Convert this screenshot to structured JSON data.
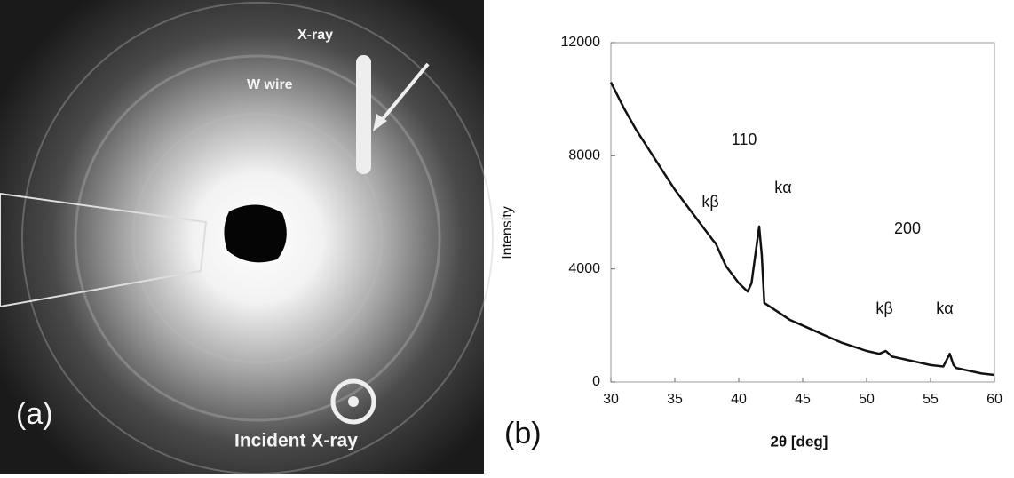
{
  "panel_a": {
    "label": "(a)",
    "texts": [
      "X-ray",
      "W wire",
      "Incident X-ray"
    ]
  },
  "chart_data": {
    "type": "line",
    "panel_label": "(b)",
    "x_label": "2θ [deg]",
    "y_label": "Intensity",
    "annotations": [
      "110",
      "kβ",
      "kα",
      "200",
      "kβ",
      "kα"
    ],
    "x": [
      30,
      31,
      32,
      33,
      34,
      35,
      36,
      37,
      38,
      38.2,
      38.5,
      39,
      40,
      40.7,
      41,
      41.3,
      41.6,
      41.8,
      42,
      43,
      44,
      45,
      46,
      47,
      48,
      49,
      50,
      51,
      51.5,
      52,
      53,
      54,
      55,
      56,
      56.5,
      56.8,
      57,
      58,
      59,
      60
    ],
    "series": [
      {
        "name": "Intensity",
        "color": "#111111",
        "values": [
          10600,
          9700,
          8900,
          8200,
          7500,
          6800,
          6200,
          5600,
          5000,
          4900,
          4600,
          4100,
          3500,
          3200,
          3500,
          4500,
          5500,
          4500,
          2800,
          2500,
          2200,
          2000,
          1800,
          1600,
          1400,
          1250,
          1100,
          1000,
          1100,
          900,
          800,
          700,
          600,
          550,
          1000,
          600,
          500,
          400,
          300,
          250
        ]
      }
    ],
    "xlim": [
      30,
      60
    ],
    "xticks": [
      30,
      35,
      40,
      45,
      50,
      55,
      60
    ],
    "ylim": [
      0,
      12000
    ],
    "yticks": [
      0,
      4000,
      8000,
      12000
    ]
  }
}
